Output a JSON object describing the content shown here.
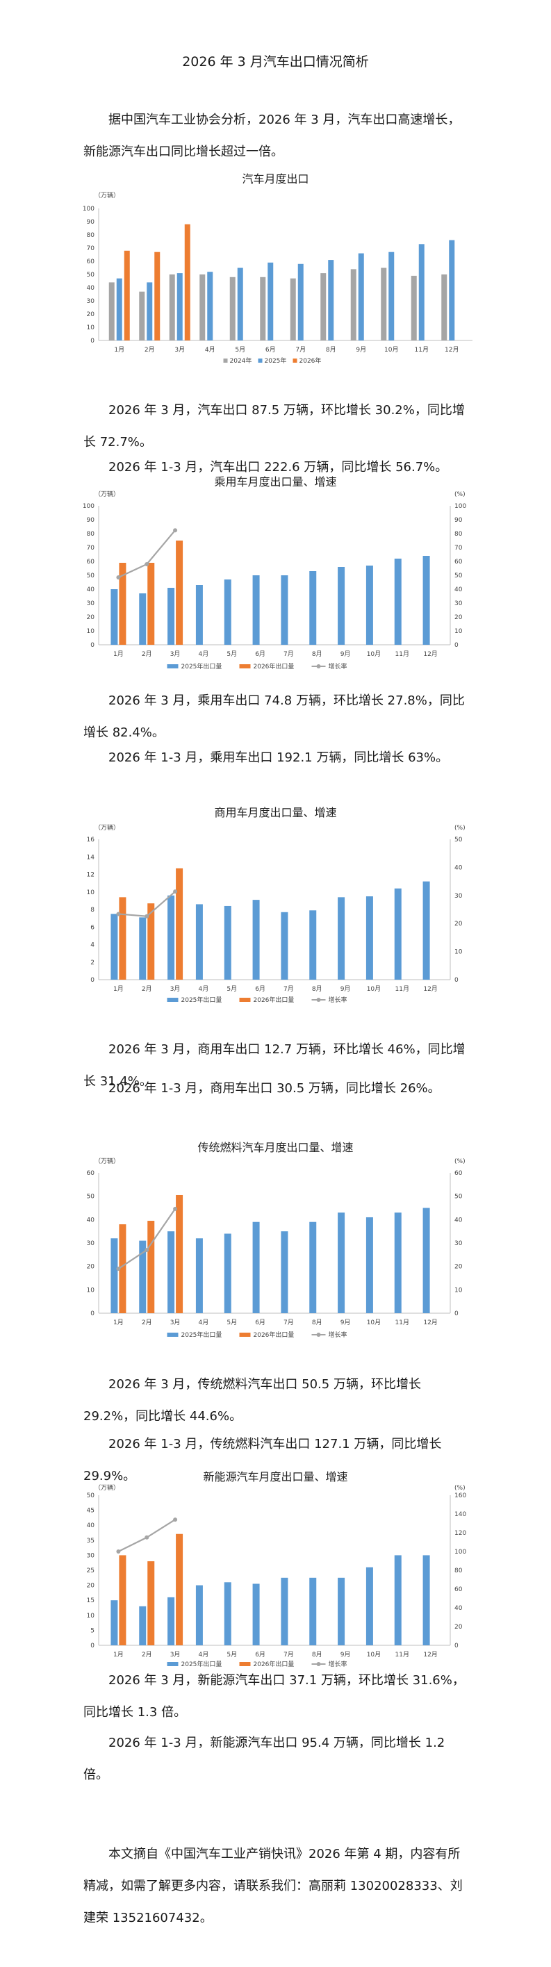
{
  "doc": {
    "title": "2026 年 3 月汽车出口情况简析",
    "intro": "据中国汽车工业协会分析，2026 年 3 月，汽车出口高速增长，新能源汽车出口同比增长超过一倍。",
    "p_total_1": "2026 年 3 月，汽车出口 87.5 万辆，环比增长 30.2%，同比增长 72.7%。",
    "p_total_2": "2026 年 1-3 月，汽车出口 222.6 万辆，同比增长 56.7%。",
    "p_pass_1": "2026 年 3 月，乘用车出口 74.8 万辆，环比增长 27.8%，同比增长 82.4%。",
    "p_pass_2": "2026 年 1-3 月，乘用车出口 192.1 万辆，同比增长 63%。",
    "p_comm_1": "2026 年 3 月，商用车出口 12.7 万辆，环比增长 46%，同比增长 31.4%。",
    "p_comm_2": "2026 年 1-3 月，商用车出口 30.5 万辆，同比增长 26%。",
    "p_fuel_1": "2026 年 3 月，传统燃料汽车出口 50.5 万辆，环比增长 29.2%，同比增长 44.6%。",
    "p_fuel_2": "2026 年 1-3 月，传统燃料汽车出口 127.1 万辆，同比增长 29.9%。",
    "p_nev_1": "2026 年 3 月，新能源汽车出口 37.1 万辆，环比增长 31.6%，同比增长 1.3 倍。",
    "p_nev_2": "2026 年 1-3 月，新能源汽车出口 95.4 万辆，同比增长 1.2 倍。",
    "footer": "本文摘自《中国汽车工业产销快讯》2026 年第 4 期，内容有所精减，如需了解更多内容，请联系我们：高丽莉 13020028333、刘建荣 13521607432。"
  },
  "chart_data": [
    {
      "type": "bar",
      "title": "汽车月度出口",
      "ylabel": "（万辆）",
      "ylim": [
        0,
        100
      ],
      "yticks": [
        0,
        10,
        20,
        30,
        40,
        50,
        60,
        70,
        80,
        90,
        100
      ],
      "categories": [
        "1月",
        "2月",
        "3月",
        "4月",
        "5月",
        "6月",
        "7月",
        "8月",
        "9月",
        "10月",
        "11月",
        "12月"
      ],
      "series": [
        {
          "name": "2024年",
          "color": "#a5a5a5",
          "values": [
            44,
            37,
            50,
            50,
            48,
            48,
            47,
            51,
            54,
            55,
            49,
            50
          ]
        },
        {
          "name": "2025年",
          "color": "#5b9bd5",
          "values": [
            47,
            44,
            51,
            52,
            55,
            59,
            58,
            61,
            66,
            67,
            73,
            76
          ]
        },
        {
          "name": "2026年",
          "color": "#ed7d31",
          "values": [
            68,
            67,
            88,
            null,
            null,
            null,
            null,
            null,
            null,
            null,
            null,
            null
          ]
        }
      ],
      "legend": "bottom",
      "grid": false
    },
    {
      "type": "bar+line",
      "title": "乘用车月度出口量、增速",
      "ylabel": "（万辆）",
      "y2label": "(%)",
      "ylim": [
        0,
        100
      ],
      "y2lim": [
        0,
        100
      ],
      "yticks": [
        0,
        10,
        20,
        30,
        40,
        50,
        60,
        70,
        80,
        90,
        100
      ],
      "y2ticks": [
        0,
        10,
        20,
        30,
        40,
        50,
        60,
        70,
        80,
        90,
        100
      ],
      "categories": [
        "1月",
        "2月",
        "3月",
        "4月",
        "5月",
        "6月",
        "7月",
        "8月",
        "9月",
        "10月",
        "11月",
        "12月"
      ],
      "series": [
        {
          "name": "2025年出口量",
          "color": "#5b9bd5",
          "values": [
            40,
            37,
            41,
            43,
            47,
            50,
            50,
            53,
            56,
            57,
            62,
            64
          ]
        },
        {
          "name": "2026年出口量",
          "color": "#ed7d31",
          "values": [
            59,
            59,
            75,
            null,
            null,
            null,
            null,
            null,
            null,
            null,
            null,
            null
          ]
        }
      ],
      "line": {
        "name": "增长率",
        "color": "#a5a5a5",
        "values": [
          48.5,
          58,
          82.4
        ]
      },
      "legend": "bottom",
      "grid": false
    },
    {
      "type": "bar+line",
      "title": "商用车月度出口量、增速",
      "ylabel": "（万辆）",
      "y2label": "(%)",
      "ylim": [
        0,
        16
      ],
      "y2lim": [
        0,
        50
      ],
      "yticks": [
        0,
        2,
        4,
        6,
        8,
        10,
        12,
        14,
        16
      ],
      "y2ticks": [
        0,
        10,
        20,
        30,
        40,
        50
      ],
      "categories": [
        "1月",
        "2月",
        "3月",
        "4月",
        "5月",
        "6月",
        "7月",
        "8月",
        "9月",
        "10月",
        "11月",
        "12月"
      ],
      "series": [
        {
          "name": "2025年出口量",
          "color": "#5b9bd5",
          "values": [
            7.5,
            7.1,
            9.6,
            8.6,
            8.4,
            9.1,
            7.7,
            7.9,
            9.4,
            9.5,
            10.4,
            11.2
          ]
        },
        {
          "name": "2026年出口量",
          "color": "#ed7d31",
          "values": [
            9.4,
            8.7,
            12.7,
            null,
            null,
            null,
            null,
            null,
            null,
            null,
            null,
            null
          ]
        }
      ],
      "line": {
        "name": "增长率",
        "color": "#a5a5a5",
        "values": [
          23.4,
          22.6,
          31.4
        ]
      },
      "legend": "bottom",
      "grid": false
    },
    {
      "type": "bar+line",
      "title": "传统燃料汽车月度出口量、增速",
      "ylabel": "（万辆）",
      "y2label": "(%)",
      "ylim": [
        0,
        60
      ],
      "y2lim": [
        0,
        60
      ],
      "yticks": [
        0,
        10,
        20,
        30,
        40,
        50,
        60
      ],
      "y2ticks": [
        0,
        10,
        20,
        30,
        40,
        50,
        60
      ],
      "categories": [
        "1月",
        "2月",
        "3月",
        "4月",
        "5月",
        "6月",
        "7月",
        "8月",
        "9月",
        "10月",
        "11月",
        "12月"
      ],
      "series": [
        {
          "name": "2025年出口量",
          "color": "#5b9bd5",
          "values": [
            32,
            31,
            35,
            32,
            34,
            39,
            35,
            39,
            43,
            41,
            43,
            45
          ]
        },
        {
          "name": "2026年出口量",
          "color": "#ed7d31",
          "values": [
            38,
            39.5,
            50.5,
            null,
            null,
            null,
            null,
            null,
            null,
            null,
            null,
            null
          ]
        }
      ],
      "line": {
        "name": "增长率",
        "color": "#a5a5a5",
        "values": [
          19,
          27,
          44.6
        ]
      },
      "legend": "bottom",
      "grid": false
    },
    {
      "type": "bar+line",
      "title": "新能源汽车月度出口量、增速",
      "ylabel": "（万辆）",
      "y2label": "(%)",
      "ylim": [
        0,
        50
      ],
      "y2lim": [
        0,
        160
      ],
      "yticks": [
        0,
        5,
        10,
        15,
        20,
        25,
        30,
        35,
        40,
        45,
        50
      ],
      "y2ticks": [
        0,
        20,
        40,
        60,
        80,
        100,
        120,
        140,
        160
      ],
      "categories": [
        "1月",
        "2月",
        "3月",
        "4月",
        "5月",
        "6月",
        "7月",
        "8月",
        "9月",
        "10月",
        "11月",
        "12月"
      ],
      "series": [
        {
          "name": "2025年出口量",
          "color": "#5b9bd5",
          "values": [
            15,
            13,
            16,
            20,
            21,
            20.5,
            22.5,
            22.5,
            22.5,
            26,
            30,
            30
          ]
        },
        {
          "name": "2026年出口量",
          "color": "#ed7d31",
          "values": [
            30,
            28,
            37.1,
            null,
            null,
            null,
            null,
            null,
            null,
            null,
            null,
            null
          ]
        }
      ],
      "line": {
        "name": "增长率",
        "color": "#a5a5a5",
        "values": [
          100,
          115,
          134
        ]
      },
      "legend": "bottom",
      "grid": false
    }
  ]
}
